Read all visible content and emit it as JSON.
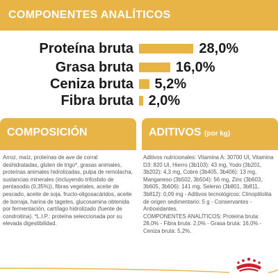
{
  "banner": {
    "title": "COMPONENTES ANALÍTICOS"
  },
  "analysis": {
    "rows": [
      {
        "label": "Proteína bruta",
        "value": "28,0%",
        "percent": 28.0
      },
      {
        "label": "Grasa bruta",
        "value": "16,0%",
        "percent": 16.0
      },
      {
        "label": "Ceniza bruta",
        "value": "5,2%",
        "percent": 5.2
      },
      {
        "label": "Fibra bruta",
        "value": "2,0%",
        "percent": 2.0
      }
    ]
  },
  "composition": {
    "title": "COMPOSICIÓN",
    "text": "Arroz, maíz, proteínas de ave de corral deshidratadas, gluten de trigo*, grasas animales, proteínas animales hidrolizadas, pulpa de remolacha, sustancias minerales (incluyendo trifosfato de pentasodio (0,35%)), fibras vegetales, aceite de pescado, aceite de soja, fructo-oligosacáridos, aceite de borraja, harina de tagetes, glucosamina obtenida por fermentación, cartílago hidrolizado (fuente de condroitina). *L.I.P.: proteína seleccionada por su elevada digestibilidad."
  },
  "additives": {
    "title": "ADITIVOS",
    "unit": "(por kg)",
    "text": "Aditivos nutricionales: Vitamina A: 30700 UI, Vitamina D3: 820 UI, Hierro (3b103): 43 mg, Yodo (3b201, 3b202): 4,3 mg, Cobre (3b405, 3b406): 13 mg, Manganeso (3b502, 3b504): 56 mg, Zinc (3b603, 3b605, 3b606): 141 mg, Selenio (3b801, 3b811, 3b812): 0,09 mg - Aditivos tecnológicos: Clinoptilolita de origen sedimentario: 5 g - Conservantes - Antioxidantes.\nCOMPONENTES ANALÍTICOS: Proteína bruta: 28,0% - Fibra bruta: 2,0% - Grasa bruta: 16,0% - Ceniza bruta: 5,2%."
  },
  "colors": {
    "accent": "#e8b445",
    "brand_red": "#cc1f2f",
    "text_dark": "#1a1a1a",
    "text_body": "#555555"
  },
  "logo": {
    "icon": "royal-canin-crown-icon"
  }
}
